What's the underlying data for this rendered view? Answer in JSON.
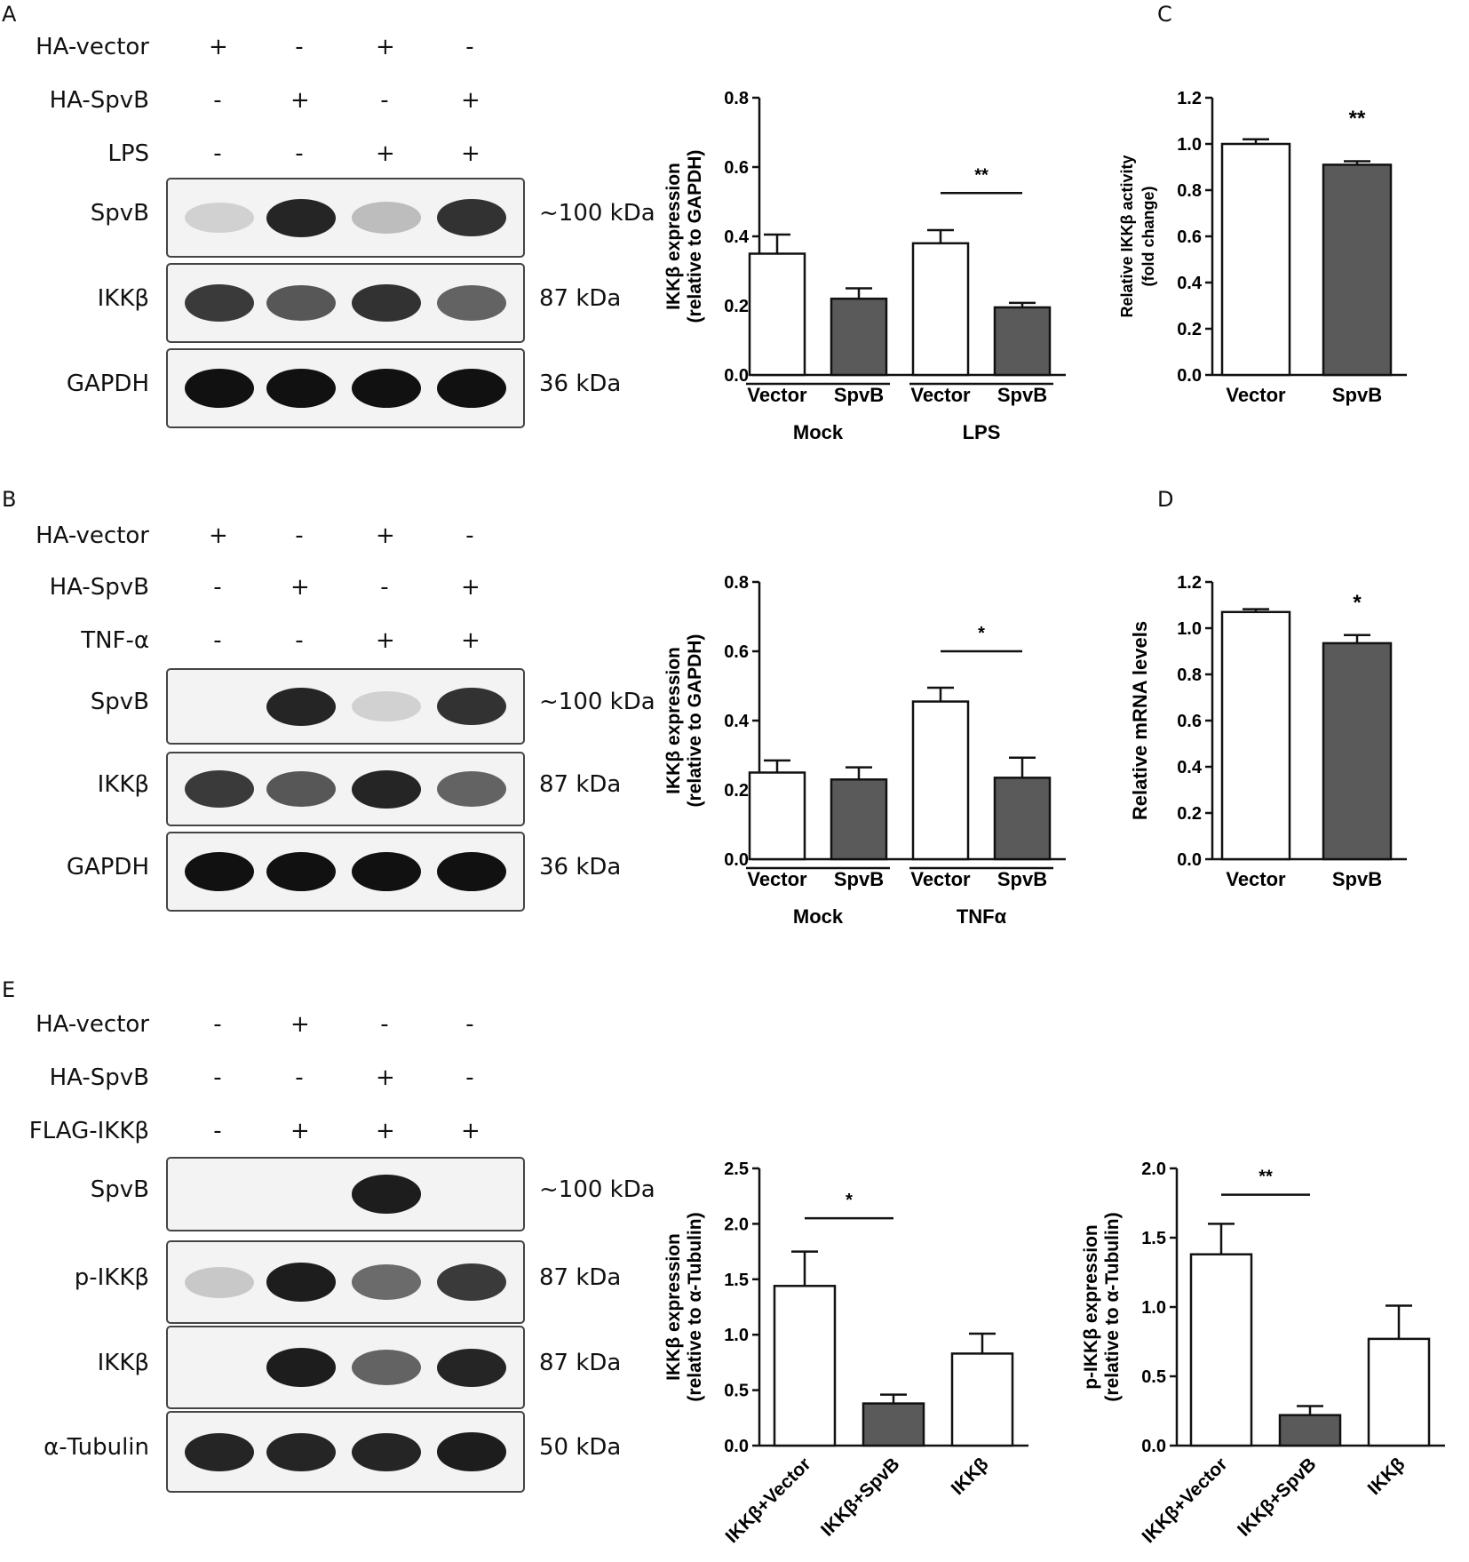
{
  "panels": {
    "A": {
      "letter": "A",
      "conditions": [
        {
          "label": "HA-vector",
          "signs": [
            "+",
            "-",
            "+",
            "-"
          ]
        },
        {
          "label": "HA-SpvB",
          "signs": [
            "-",
            "+",
            "-",
            "+"
          ]
        },
        {
          "label": "LPS",
          "signs": [
            "-",
            "-",
            "+",
            "+"
          ]
        }
      ],
      "blots": [
        {
          "name": "SpvB",
          "kda": "~100 kDa",
          "intensity": [
            0.05,
            0.9,
            0.15,
            0.85
          ]
        },
        {
          "name": "IKKβ",
          "kda": "87 kDa",
          "intensity": [
            0.8,
            0.65,
            0.85,
            0.6
          ]
        },
        {
          "name": "GAPDH",
          "kda": "36 kDa",
          "intensity": [
            1,
            1,
            1,
            1
          ]
        }
      ]
    },
    "B": {
      "letter": "B",
      "conditions": [
        {
          "label": "HA-vector",
          "signs": [
            "+",
            "-",
            "+",
            "-"
          ]
        },
        {
          "label": "HA-SpvB",
          "signs": [
            "-",
            "+",
            "-",
            "+"
          ]
        },
        {
          "label": "TNF-α",
          "signs": [
            "-",
            "-",
            "+",
            "+"
          ]
        }
      ],
      "blots": [
        {
          "name": "SpvB",
          "kda": "~100 kDa",
          "intensity": [
            0,
            0.9,
            0.05,
            0.85
          ]
        },
        {
          "name": "IKKβ",
          "kda": "87 kDa",
          "intensity": [
            0.8,
            0.65,
            0.9,
            0.6
          ]
        },
        {
          "name": "GAPDH",
          "kda": "36 kDa",
          "intensity": [
            1,
            1,
            1,
            1
          ]
        }
      ]
    },
    "C": {
      "letter": "C"
    },
    "D": {
      "letter": "D"
    },
    "E": {
      "letter": "E",
      "conditions": [
        {
          "label": "HA-vector",
          "signs": [
            "-",
            "+",
            "-",
            "-"
          ]
        },
        {
          "label": "HA-SpvB",
          "signs": [
            "-",
            "-",
            "+",
            "-"
          ]
        },
        {
          "label": "FLAG-IKKβ",
          "signs": [
            "-",
            "+",
            "+",
            "+"
          ]
        }
      ],
      "blots": [
        {
          "name": "SpvB",
          "kda": "~100 kDa",
          "intensity": [
            0,
            0,
            0.95,
            0
          ]
        },
        {
          "name": "p-IKKβ",
          "kda": "87 kDa",
          "intensity": [
            0.1,
            0.95,
            0.55,
            0.8
          ]
        },
        {
          "name": "IKKβ",
          "kda": "87 kDa",
          "intensity": [
            0,
            0.95,
            0.6,
            0.9
          ]
        },
        {
          "name": "α-Tubulin",
          "kda": "50 kDa",
          "intensity": [
            0.9,
            0.9,
            0.9,
            0.95
          ]
        }
      ]
    }
  },
  "chart_data": [
    {
      "id": "A-chart",
      "type": "bar",
      "ylabel": "IKKβ expression",
      "ylabel2": "(relative to GAPDH)",
      "ylim": [
        0,
        0.8
      ],
      "yticks": [
        "0.0",
        "0.2",
        "0.4",
        "0.6",
        "0.8"
      ],
      "categories": [
        "Vector",
        "SpvB",
        "Vector",
        "SpvB"
      ],
      "values": [
        0.35,
        0.22,
        0.38,
        0.195
      ],
      "errors": [
        0.055,
        0.03,
        0.038,
        0.013
      ],
      "fills": [
        "#ffffff",
        "#5a5a5a",
        "#ffffff",
        "#5a5a5a"
      ],
      "groups": [
        {
          "label": "Mock",
          "span": [
            0,
            1
          ]
        },
        {
          "label": "LPS",
          "span": [
            2,
            3
          ]
        }
      ],
      "significance": [
        {
          "label": "**",
          "span": [
            2,
            3
          ],
          "y": 0.525
        }
      ]
    },
    {
      "id": "C-chart",
      "type": "bar",
      "ylabel": "Relative IKKβ activity",
      "ylabel2": "(fold change)",
      "ylim": [
        0,
        1.2
      ],
      "yticks": [
        "0.0",
        "0.2",
        "0.4",
        "0.6",
        "0.8",
        "1.0",
        "1.2"
      ],
      "categories": [
        "Vector",
        "SpvB"
      ],
      "values": [
        1.0,
        0.91
      ],
      "errors": [
        0.02,
        0.015
      ],
      "fills": [
        "#ffffff",
        "#5a5a5a"
      ],
      "significance": [
        {
          "label": "**",
          "span": [
            1,
            1
          ],
          "y": 1.05
        }
      ]
    },
    {
      "id": "B-chart",
      "type": "bar",
      "ylabel": "IKKβ expression",
      "ylabel2": "(relative to GAPDH)",
      "ylim": [
        0,
        0.8
      ],
      "yticks": [
        "0.0",
        "0.2",
        "0.4",
        "0.6",
        "0.8"
      ],
      "categories": [
        "Vector",
        "SpvB",
        "Vector",
        "SpvB"
      ],
      "values": [
        0.25,
        0.23,
        0.455,
        0.235
      ],
      "errors": [
        0.035,
        0.035,
        0.04,
        0.058
      ],
      "fills": [
        "#ffffff",
        "#5a5a5a",
        "#ffffff",
        "#5a5a5a"
      ],
      "groups": [
        {
          "label": "Mock",
          "span": [
            0,
            1
          ]
        },
        {
          "label": "TNFα",
          "span": [
            2,
            3
          ]
        }
      ],
      "significance": [
        {
          "label": "*",
          "span": [
            2,
            3
          ],
          "y": 0.6
        }
      ]
    },
    {
      "id": "D-chart",
      "type": "bar",
      "ylabel": "Relative mRNA levels",
      "ylim": [
        0,
        1.2
      ],
      "yticks": [
        "0.0",
        "0.2",
        "0.4",
        "0.6",
        "0.8",
        "1.0",
        "1.2"
      ],
      "categories": [
        "Vector",
        "SpvB"
      ],
      "values": [
        1.07,
        0.935
      ],
      "errors": [
        0.012,
        0.035
      ],
      "fills": [
        "#ffffff",
        "#5a5a5a"
      ],
      "significance": [
        {
          "label": "*",
          "span": [
            1,
            1
          ],
          "y": 1.05
        }
      ]
    },
    {
      "id": "E-chart1",
      "type": "bar",
      "ylabel": "IKKβ expression",
      "ylabel2": "(relative to α-Tubulin)",
      "ylim": [
        0,
        2.5
      ],
      "yticks": [
        "0.0",
        "0.5",
        "1.0",
        "1.5",
        "2.0",
        "2.5"
      ],
      "categories": [
        "IKKβ+Vector",
        "IKKβ+SpvB",
        "IKKβ"
      ],
      "values": [
        1.44,
        0.38,
        0.83
      ],
      "errors": [
        0.31,
        0.08,
        0.18
      ],
      "fills": [
        "#ffffff",
        "#5a5a5a",
        "#ffffff"
      ],
      "significance": [
        {
          "label": "*",
          "span": [
            0,
            1
          ],
          "y": 2.05
        }
      ]
    },
    {
      "id": "E-chart2",
      "type": "bar",
      "ylabel": "p-IKKβ expression",
      "ylabel2": "(relative to α-Tubulin)",
      "ylim": [
        0,
        2.0
      ],
      "yticks": [
        "0.0",
        "0.5",
        "1.0",
        "1.5",
        "2.0"
      ],
      "categories": [
        "IKKβ+Vector",
        "IKKβ+SpvB",
        "IKKβ"
      ],
      "values": [
        1.38,
        0.22,
        0.77
      ],
      "errors": [
        0.22,
        0.065,
        0.24
      ],
      "fills": [
        "#ffffff",
        "#5a5a5a",
        "#ffffff"
      ],
      "significance": [
        {
          "label": "**",
          "span": [
            0,
            1
          ],
          "y": 1.81
        }
      ]
    }
  ]
}
